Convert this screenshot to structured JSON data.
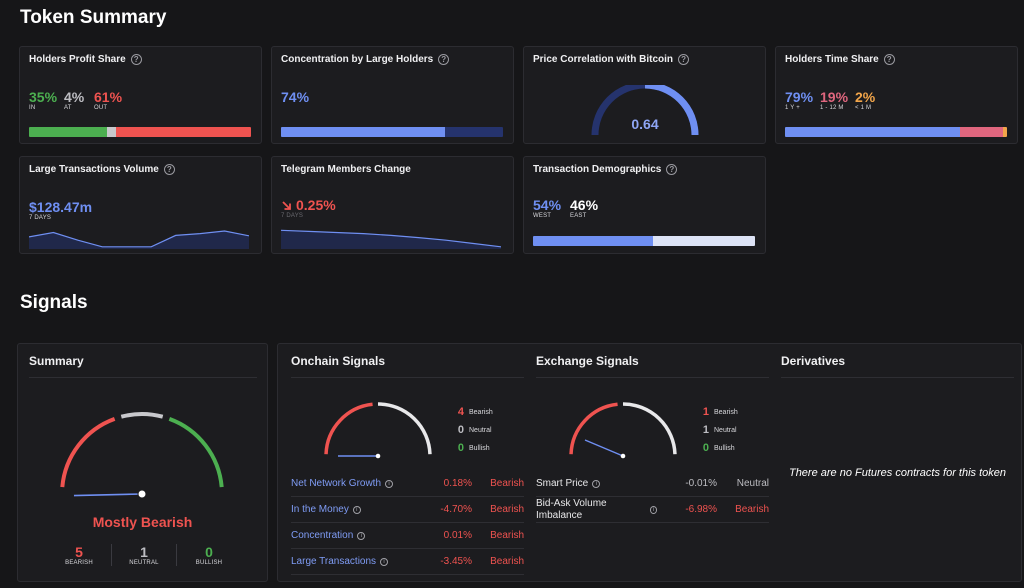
{
  "token_summary": {
    "title": "Token Summary",
    "holders_profit": {
      "title": "Holders Profit Share",
      "in": {
        "value": "35%",
        "label": "IN",
        "fraction": 0.35
      },
      "at": {
        "value": "4%",
        "label": "AT",
        "fraction": 0.04
      },
      "out": {
        "value": "61%",
        "label": "OUT",
        "fraction": 0.61
      }
    },
    "concentration": {
      "title": "Concentration by Large Holders",
      "value": "74%",
      "fraction": 0.74
    },
    "btc_correlation": {
      "title": "Price Correlation with Bitcoin",
      "value": "0.64",
      "fraction": 0.64
    },
    "time_share": {
      "title": "Holders Time Share",
      "long": {
        "value": "79%",
        "label": "1 Y +",
        "fraction": 0.79
      },
      "mid": {
        "value": "19%",
        "label": "1 - 12 M",
        "fraction": 0.19
      },
      "short": {
        "value": "2%",
        "label": "< 1 M",
        "fraction": 0.02
      }
    },
    "large_tx": {
      "title": "Large Transactions Volume",
      "value": "$128.47m",
      "period": "7 DAYS",
      "trend": [
        0.55,
        0.75,
        0.4,
        0.1,
        0.1,
        0.1,
        0.62,
        0.7,
        0.82,
        0.6
      ]
    },
    "telegram": {
      "title": "Telegram Members Change",
      "value": "0.25%",
      "direction_icon": "arrow-down-right-icon",
      "period": "7 DAYS",
      "trend": [
        0.85,
        0.8,
        0.75,
        0.7,
        0.62,
        0.52,
        0.4,
        0.25,
        0.1
      ]
    },
    "demographics": {
      "title": "Transaction Demographics",
      "west": {
        "value": "54%",
        "label": "WEST",
        "fraction": 0.54
      },
      "east": {
        "value": "46%",
        "label": "EAST",
        "fraction": 0.46
      }
    }
  },
  "signals": {
    "title": "Signals",
    "summary": {
      "title": "Summary",
      "verdict": "Mostly Bearish",
      "needle_fraction": 0.12,
      "bearish": {
        "count": "5",
        "label": "BEARISH"
      },
      "neutral": {
        "count": "1",
        "label": "NEUTRAL"
      },
      "bullish": {
        "count": "0",
        "label": "BULLISH"
      }
    },
    "onchain": {
      "title": "Onchain Signals",
      "needle_fraction": 0.0,
      "legend": [
        {
          "count": "4",
          "label": "Bearish"
        },
        {
          "count": "0",
          "label": "Neutral"
        },
        {
          "count": "0",
          "label": "Bullish"
        }
      ],
      "rows": [
        {
          "name": "Net Network Growth",
          "value": "0.18%",
          "verdict": "Bearish"
        },
        {
          "name": "In the Money",
          "value": "-4.70%",
          "verdict": "Bearish"
        },
        {
          "name": "Concentration",
          "value": "0.01%",
          "verdict": "Bearish"
        },
        {
          "name": "Large Transactions",
          "value": "-3.45%",
          "verdict": "Bearish"
        }
      ]
    },
    "exchange": {
      "title": "Exchange Signals",
      "needle_fraction": 0.12,
      "legend": [
        {
          "count": "1",
          "label": "Bearish"
        },
        {
          "count": "1",
          "label": "Neutral"
        },
        {
          "count": "0",
          "label": "Bullish"
        }
      ],
      "rows": [
        {
          "name": "Smart Price",
          "value": "-0.01%",
          "verdict": "Neutral"
        },
        {
          "name": "Bid-Ask Volume Imbalance",
          "value": "-6.98%",
          "verdict": "Bearish"
        }
      ]
    },
    "derivatives": {
      "title": "Derivatives",
      "empty_message": "There are no Futures contracts for this token"
    }
  },
  "colors": {
    "bearish": "#ef5350",
    "neutral": "#bdbdc2",
    "bullish": "#4caf50",
    "accent": "#6f8ff2",
    "dark_accent": "#25336d"
  }
}
